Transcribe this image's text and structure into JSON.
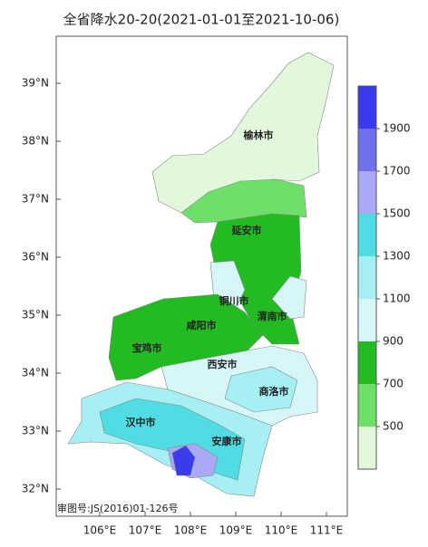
{
  "title": "全省降水20-20(2021-01-01至2021-10-06)",
  "lat_labels": [
    "39°N",
    "38°N",
    "37°N",
    "36°N",
    "35°N",
    "34°N",
    "33°N",
    "32°N"
  ],
  "lon_labels": [
    "106°E",
    "107°E",
    "108°E",
    "109°E",
    "110°E",
    "111°E"
  ],
  "cities": [
    "榆林市",
    "延安市",
    "铜川市",
    "渭南市",
    "咸阳市",
    "宝鸡市",
    "西安市",
    "商洛市",
    "汉中市",
    "安康市"
  ],
  "map_number": "审图号:JS(2016)01-126号",
  "colorbar": {
    "range": [
      300,
      2100
    ],
    "ticks": [
      500,
      700,
      900,
      1100,
      1300,
      1500,
      1700,
      1900
    ],
    "colors": [
      "#e2f8dc",
      "#6ee06a",
      "#22bb22",
      "#d6f6f8",
      "#a6f0f4",
      "#4fdce2",
      "#a9a9f6",
      "#7070ea",
      "#3a3aee"
    ]
  }
}
